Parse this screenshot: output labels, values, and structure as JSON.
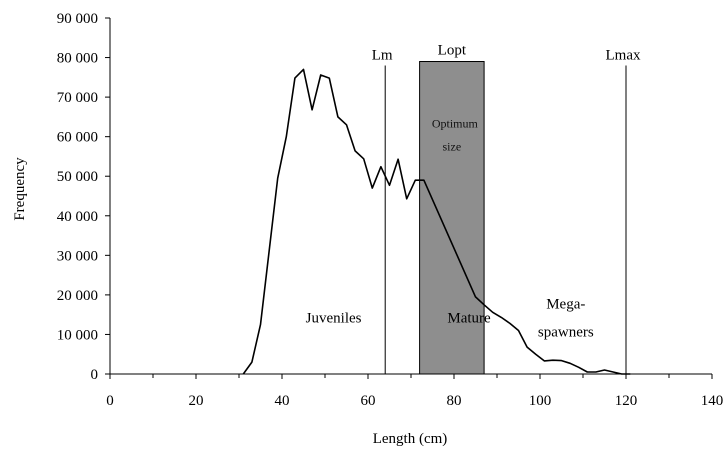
{
  "chart_data": {
    "type": "line",
    "title": "",
    "xlabel": "Length (cm)",
    "ylabel": "Frequency",
    "xlim": [
      0,
      140
    ],
    "ylim": [
      0,
      90000
    ],
    "x_ticks": [
      0,
      20,
      40,
      60,
      80,
      100,
      120,
      140
    ],
    "x_tick_labels": [
      "0",
      "20",
      "40",
      "60",
      "80",
      "100",
      "120",
      "140"
    ],
    "y_ticks": [
      0,
      10000,
      20000,
      30000,
      40000,
      50000,
      60000,
      70000,
      80000,
      90000
    ],
    "y_tick_labels": [
      "0",
      "10 000",
      "20 000",
      "30 000",
      "40 000",
      "50 000",
      "60 000",
      "70 000",
      "80 000",
      "90 000"
    ],
    "grid": false,
    "legend": "none",
    "series": [
      {
        "x": [
          31,
          33,
          35,
          37,
          39,
          41,
          43,
          45,
          47,
          49,
          51,
          53,
          55,
          57,
          59,
          61,
          63,
          65,
          67,
          69,
          71,
          73,
          85,
          87,
          89,
          91,
          93,
          95,
          97,
          99,
          101,
          103,
          105,
          107,
          109,
          111,
          113,
          115,
          117,
          119,
          121
        ],
        "y": [
          0,
          3000,
          12500,
          31000,
          49500,
          60000,
          74800,
          77000,
          66800,
          75600,
          74800,
          65000,
          63000,
          56400,
          54400,
          47000,
          52400,
          47700,
          54300,
          44300,
          49000,
          49000,
          19500,
          17500,
          15600,
          14300,
          12800,
          11000,
          6800,
          5000,
          3300,
          3500,
          3400,
          2700,
          1700,
          500,
          500,
          1000,
          500,
          0,
          0
        ],
        "color": "#000000"
      }
    ],
    "vertical_lines": [
      {
        "label": "Lm",
        "x": 64,
        "top": 78000
      },
      {
        "label": "Lmax",
        "x": 120,
        "top": 78000
      }
    ],
    "optimum_box": {
      "label": "Lopt",
      "text_line1": "Optimum",
      "text_line2": "size",
      "x_start": 72,
      "x_end": 87,
      "top": 79000,
      "fill": "#8e8e8e"
    },
    "annotations": [
      {
        "text": "Juveniles",
        "x": 52,
        "y": 13000
      },
      {
        "text": "Mature",
        "x": 83.5,
        "y": 13000
      },
      {
        "text": "Mega-",
        "x": 106,
        "y": 16500
      },
      {
        "text": "spawners",
        "x": 106,
        "y": 9500
      }
    ]
  }
}
